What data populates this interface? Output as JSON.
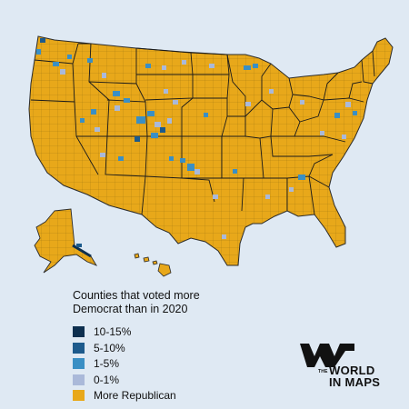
{
  "legend": {
    "title_line1": "Counties that voted more",
    "title_line2": "Democrat than in 2020",
    "items": [
      {
        "label": "10-15%",
        "color": "#0d2f4f"
      },
      {
        "label": "5-10%",
        "color": "#1c5a8c"
      },
      {
        "label": "1-5%",
        "color": "#3a8fc4"
      },
      {
        "label": "0-1%",
        "color": "#aab9d9"
      },
      {
        "label": "More Republican",
        "color": "#e8a81a"
      }
    ]
  },
  "brand": {
    "the": "THE",
    "line1": "WORLD",
    "line2": "IN MAPS"
  },
  "colors": {
    "background": "#dfe9f3",
    "republican": "#e8a81a",
    "border": "#2a2a2a"
  },
  "map": {
    "regions": [
      "contiguous-us",
      "alaska",
      "hawaii"
    ]
  }
}
